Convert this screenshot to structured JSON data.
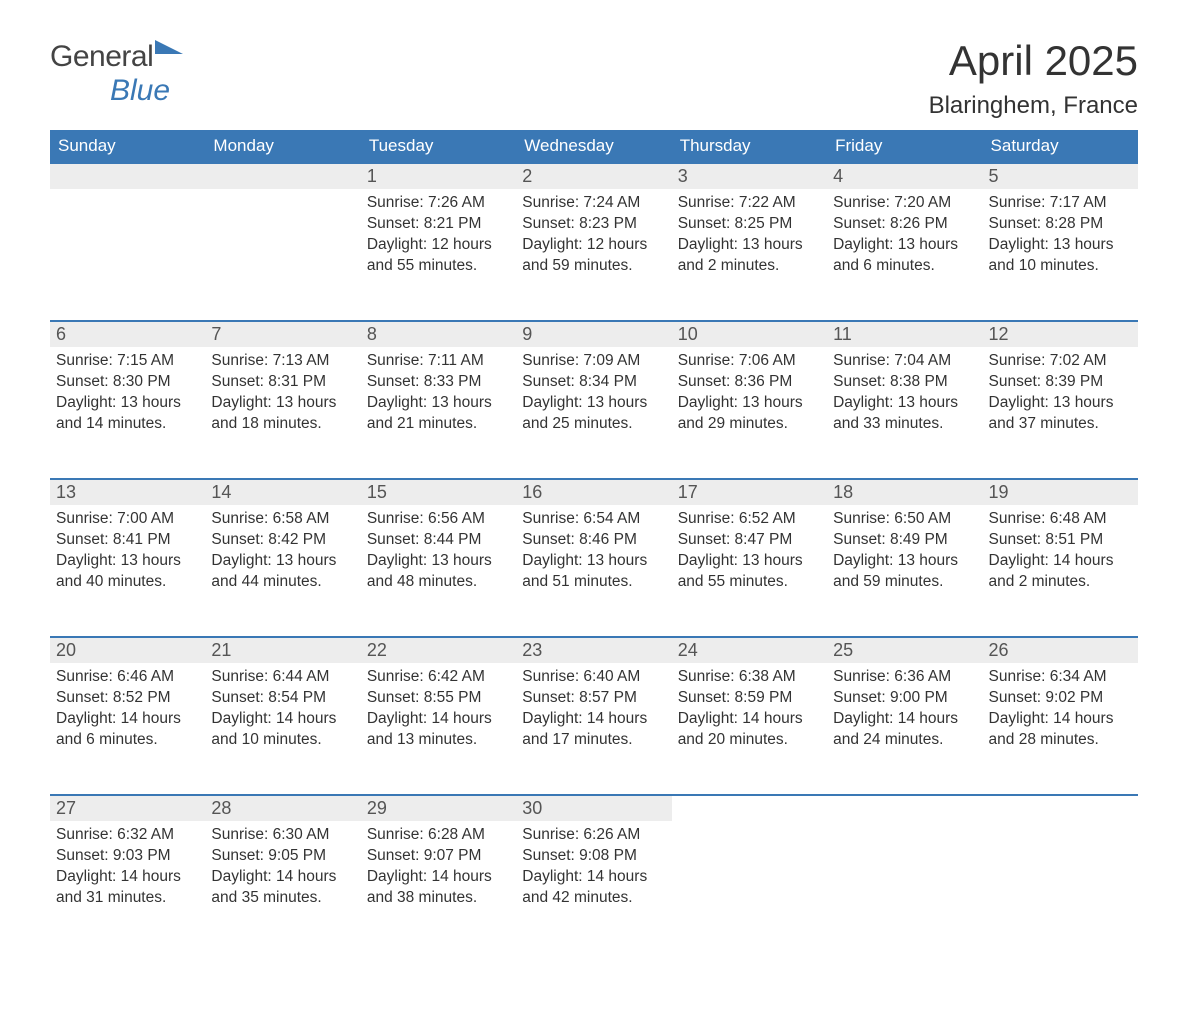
{
  "logo": {
    "general": "General",
    "blue": "Blue"
  },
  "title": "April 2025",
  "location": "Blaringhem, France",
  "colors": {
    "header_bg": "#3a78b5",
    "header_text": "#ffffff",
    "daynum_bg": "#ededed",
    "daynum_border": "#3a78b5",
    "body_text": "#333333",
    "page_bg": "#ffffff"
  },
  "day_headers": [
    "Sunday",
    "Monday",
    "Tuesday",
    "Wednesday",
    "Thursday",
    "Friday",
    "Saturday"
  ],
  "weeks": [
    [
      null,
      null,
      {
        "day": "1",
        "sunrise": "7:26 AM",
        "sunset": "8:21 PM",
        "daylight_line1": "Daylight: 12 hours",
        "daylight_line2": "and 55 minutes."
      },
      {
        "day": "2",
        "sunrise": "7:24 AM",
        "sunset": "8:23 PM",
        "daylight_line1": "Daylight: 12 hours",
        "daylight_line2": "and 59 minutes."
      },
      {
        "day": "3",
        "sunrise": "7:22 AM",
        "sunset": "8:25 PM",
        "daylight_line1": "Daylight: 13 hours",
        "daylight_line2": "and 2 minutes."
      },
      {
        "day": "4",
        "sunrise": "7:20 AM",
        "sunset": "8:26 PM",
        "daylight_line1": "Daylight: 13 hours",
        "daylight_line2": "and 6 minutes."
      },
      {
        "day": "5",
        "sunrise": "7:17 AM",
        "sunset": "8:28 PM",
        "daylight_line1": "Daylight: 13 hours",
        "daylight_line2": "and 10 minutes."
      }
    ],
    [
      {
        "day": "6",
        "sunrise": "7:15 AM",
        "sunset": "8:30 PM",
        "daylight_line1": "Daylight: 13 hours",
        "daylight_line2": "and 14 minutes."
      },
      {
        "day": "7",
        "sunrise": "7:13 AM",
        "sunset": "8:31 PM",
        "daylight_line1": "Daylight: 13 hours",
        "daylight_line2": "and 18 minutes."
      },
      {
        "day": "8",
        "sunrise": "7:11 AM",
        "sunset": "8:33 PM",
        "daylight_line1": "Daylight: 13 hours",
        "daylight_line2": "and 21 minutes."
      },
      {
        "day": "9",
        "sunrise": "7:09 AM",
        "sunset": "8:34 PM",
        "daylight_line1": "Daylight: 13 hours",
        "daylight_line2": "and 25 minutes."
      },
      {
        "day": "10",
        "sunrise": "7:06 AM",
        "sunset": "8:36 PM",
        "daylight_line1": "Daylight: 13 hours",
        "daylight_line2": "and 29 minutes."
      },
      {
        "day": "11",
        "sunrise": "7:04 AM",
        "sunset": "8:38 PM",
        "daylight_line1": "Daylight: 13 hours",
        "daylight_line2": "and 33 minutes."
      },
      {
        "day": "12",
        "sunrise": "7:02 AM",
        "sunset": "8:39 PM",
        "daylight_line1": "Daylight: 13 hours",
        "daylight_line2": "and 37 minutes."
      }
    ],
    [
      {
        "day": "13",
        "sunrise": "7:00 AM",
        "sunset": "8:41 PM",
        "daylight_line1": "Daylight: 13 hours",
        "daylight_line2": "and 40 minutes."
      },
      {
        "day": "14",
        "sunrise": "6:58 AM",
        "sunset": "8:42 PM",
        "daylight_line1": "Daylight: 13 hours",
        "daylight_line2": "and 44 minutes."
      },
      {
        "day": "15",
        "sunrise": "6:56 AM",
        "sunset": "8:44 PM",
        "daylight_line1": "Daylight: 13 hours",
        "daylight_line2": "and 48 minutes."
      },
      {
        "day": "16",
        "sunrise": "6:54 AM",
        "sunset": "8:46 PM",
        "daylight_line1": "Daylight: 13 hours",
        "daylight_line2": "and 51 minutes."
      },
      {
        "day": "17",
        "sunrise": "6:52 AM",
        "sunset": "8:47 PM",
        "daylight_line1": "Daylight: 13 hours",
        "daylight_line2": "and 55 minutes."
      },
      {
        "day": "18",
        "sunrise": "6:50 AM",
        "sunset": "8:49 PM",
        "daylight_line1": "Daylight: 13 hours",
        "daylight_line2": "and 59 minutes."
      },
      {
        "day": "19",
        "sunrise": "6:48 AM",
        "sunset": "8:51 PM",
        "daylight_line1": "Daylight: 14 hours",
        "daylight_line2": "and 2 minutes."
      }
    ],
    [
      {
        "day": "20",
        "sunrise": "6:46 AM",
        "sunset": "8:52 PM",
        "daylight_line1": "Daylight: 14 hours",
        "daylight_line2": "and 6 minutes."
      },
      {
        "day": "21",
        "sunrise": "6:44 AM",
        "sunset": "8:54 PM",
        "daylight_line1": "Daylight: 14 hours",
        "daylight_line2": "and 10 minutes."
      },
      {
        "day": "22",
        "sunrise": "6:42 AM",
        "sunset": "8:55 PM",
        "daylight_line1": "Daylight: 14 hours",
        "daylight_line2": "and 13 minutes."
      },
      {
        "day": "23",
        "sunrise": "6:40 AM",
        "sunset": "8:57 PM",
        "daylight_line1": "Daylight: 14 hours",
        "daylight_line2": "and 17 minutes."
      },
      {
        "day": "24",
        "sunrise": "6:38 AM",
        "sunset": "8:59 PM",
        "daylight_line1": "Daylight: 14 hours",
        "daylight_line2": "and 20 minutes."
      },
      {
        "day": "25",
        "sunrise": "6:36 AM",
        "sunset": "9:00 PM",
        "daylight_line1": "Daylight: 14 hours",
        "daylight_line2": "and 24 minutes."
      },
      {
        "day": "26",
        "sunrise": "6:34 AM",
        "sunset": "9:02 PM",
        "daylight_line1": "Daylight: 14 hours",
        "daylight_line2": "and 28 minutes."
      }
    ],
    [
      {
        "day": "27",
        "sunrise": "6:32 AM",
        "sunset": "9:03 PM",
        "daylight_line1": "Daylight: 14 hours",
        "daylight_line2": "and 31 minutes."
      },
      {
        "day": "28",
        "sunrise": "6:30 AM",
        "sunset": "9:05 PM",
        "daylight_line1": "Daylight: 14 hours",
        "daylight_line2": "and 35 minutes."
      },
      {
        "day": "29",
        "sunrise": "6:28 AM",
        "sunset": "9:07 PM",
        "daylight_line1": "Daylight: 14 hours",
        "daylight_line2": "and 38 minutes."
      },
      {
        "day": "30",
        "sunrise": "6:26 AM",
        "sunset": "9:08 PM",
        "daylight_line1": "Daylight: 14 hours",
        "daylight_line2": "and 42 minutes."
      },
      null,
      null,
      null
    ]
  ],
  "labels": {
    "sunrise_prefix": "Sunrise: ",
    "sunset_prefix": "Sunset: "
  }
}
